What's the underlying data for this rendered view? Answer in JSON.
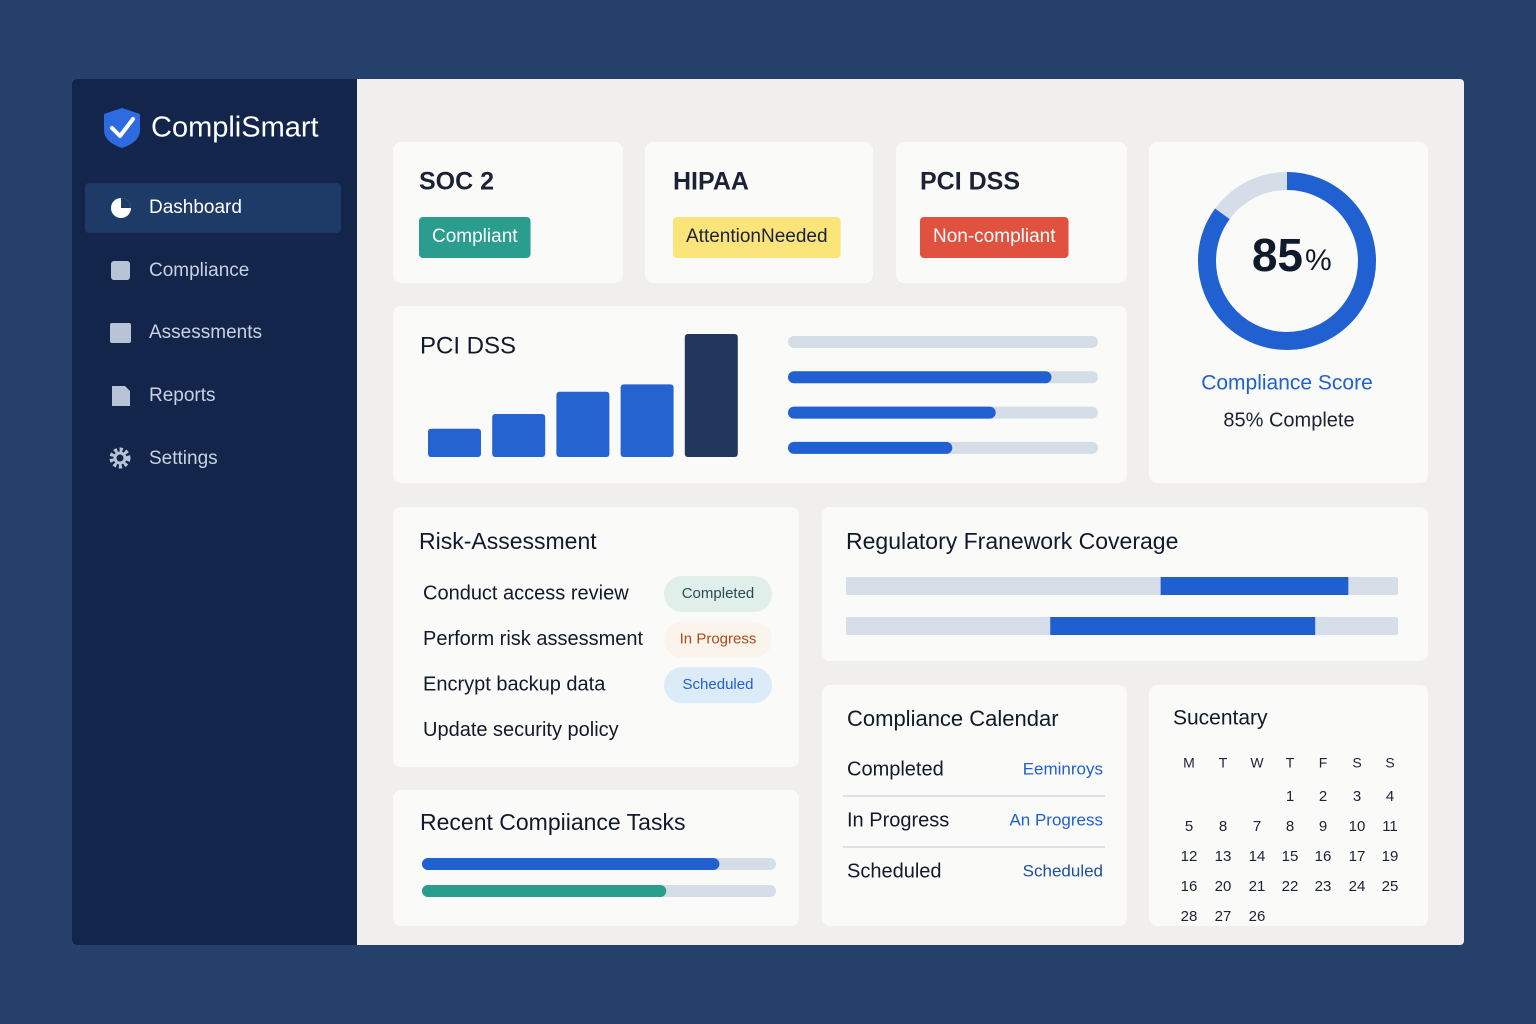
{
  "sidebar": {
    "brand": "CompliSmart",
    "nav": [
      "Dashboard",
      "Compliance",
      "Assessments",
      "Reports",
      "Settings"
    ]
  },
  "status_cards": [
    {
      "title": "SOC 2",
      "status": "Compliant",
      "color": "#2a9d8f",
      "text_color": "#ffffff"
    },
    {
      "title": "HIPAA",
      "status": "AttentionNeeded",
      "color": "#fbe57a",
      "text_color": "#1a2233"
    },
    {
      "title": "PCI DSS",
      "status": "Non-compliant",
      "color": "#e0513f",
      "text_color": "#ffffff"
    }
  ],
  "score": {
    "value": 85,
    "unit": "%",
    "title": "Compliance Score",
    "caption": "85% Complete"
  },
  "pci_chart": {
    "title": "PCI DSS",
    "bars": [
      0.23,
      0.35,
      0.53,
      0.59,
      1.0
    ],
    "bar_colors": [
      "#2563d0",
      "#2563d0",
      "#2563d0",
      "#2563d0",
      "#22375c"
    ],
    "progress": [
      0,
      0.85,
      0.67,
      0.53
    ]
  },
  "risk": {
    "title": "Risk-Assessment",
    "items": [
      {
        "task": "Conduct access review",
        "status": "Completed",
        "status_color": "#2b4a5a",
        "status_bg": "#e0efe9"
      },
      {
        "task": "Perform risk assessment",
        "status": "In Progress",
        "status_color": "#b0491c",
        "status_bg": "#fbf4ec"
      },
      {
        "task": "Encrypt backup data",
        "status": "Scheduled",
        "status_color": "#2160d0",
        "status_bg": "#dcebf8"
      },
      {
        "task": "Update security policy"
      }
    ]
  },
  "coverage": {
    "title": "Regulatory Franework Coverage",
    "ranges": [
      [
        0.57,
        0.91
      ],
      [
        0.37,
        0.85
      ]
    ]
  },
  "recent": {
    "title": "Recent Compiiance Tasks",
    "progress": [
      0.84,
      0.69
    ],
    "colors": [
      "#2160d0",
      "#2a9d8f"
    ]
  },
  "calendar": {
    "title": "Compliance Calendar",
    "rows": [
      {
        "label": "Completed",
        "value": "Eeminroys",
        "color": "#2160d0"
      },
      {
        "label": "In Progress",
        "value": "An Progress",
        "color": "#2160d0"
      },
      {
        "label": "Scheduled",
        "value": "Scheduled",
        "color": "#1d4f9c"
      }
    ]
  },
  "month": {
    "title": "Sucentary",
    "weekdays": [
      "M",
      "T",
      "W",
      "T",
      "F",
      "S",
      "S"
    ],
    "weeks": [
      [
        null,
        null,
        null,
        1,
        2,
        3,
        4
      ],
      [
        5,
        8,
        7,
        8,
        9,
        10,
        11
      ],
      [
        12,
        13,
        14,
        15,
        16,
        17,
        19
      ],
      [
        16,
        20,
        21,
        22,
        23,
        24,
        25
      ],
      [
        28,
        27,
        26
      ]
    ]
  }
}
